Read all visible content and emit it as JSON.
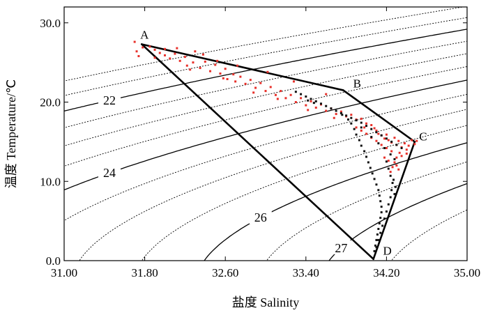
{
  "chart_data": {
    "type": "scatter",
    "title": "",
    "xlabel": "盐度 Salinity",
    "ylabel": "温度 Temperature/℃",
    "xlim": [
      31.0,
      35.0
    ],
    "ylim": [
      0.0,
      32.0
    ],
    "x_ticks": [
      31.0,
      31.8,
      32.6,
      33.4,
      34.2,
      35.0
    ],
    "x_tick_labels": [
      "31.00",
      "31.80",
      "32.60",
      "33.40",
      "34.20",
      "35.00"
    ],
    "y_ticks": [
      0.0,
      10.0,
      20.0,
      30.0
    ],
    "y_tick_labels": [
      "0.0",
      "10.0",
      "20.0",
      "30.0"
    ],
    "grid": false,
    "end_members": [
      {
        "name": "A",
        "salinity": 31.77,
        "temperature": 27.3
      },
      {
        "name": "B",
        "salinity": 33.77,
        "temperature": 21.5
      },
      {
        "name": "C",
        "salinity": 34.48,
        "temperature": 15.0
      },
      {
        "name": "D",
        "salinity": 34.07,
        "temperature": 0.2
      }
    ],
    "mixing_lines": [
      [
        "A",
        "B"
      ],
      [
        "B",
        "C"
      ],
      [
        "C",
        "D"
      ],
      [
        "D",
        "A"
      ]
    ],
    "density_contours": [
      {
        "sigma_t": 21,
        "label": ""
      },
      {
        "sigma_t": 21.5,
        "label": ""
      },
      {
        "sigma_t": 22,
        "label": "22"
      },
      {
        "sigma_t": 22.5,
        "label": ""
      },
      {
        "sigma_t": 23,
        "label": ""
      },
      {
        "sigma_t": 23.5,
        "label": ""
      },
      {
        "sigma_t": 24,
        "label": "24"
      },
      {
        "sigma_t": 24.5,
        "label": ""
      },
      {
        "sigma_t": 25,
        "label": ""
      },
      {
        "sigma_t": 25.5,
        "label": ""
      },
      {
        "sigma_t": 26,
        "label": "26"
      },
      {
        "sigma_t": 26.5,
        "label": ""
      },
      {
        "sigma_t": 27,
        "label": "27"
      },
      {
        "sigma_t": 27.5,
        "label": ""
      }
    ],
    "series": [
      {
        "name": "red observations",
        "color": "#e8302a",
        "points": [
          [
            31.7,
            27.6
          ],
          [
            31.72,
            26.4
          ],
          [
            31.74,
            25.8
          ],
          [
            31.78,
            26.9
          ],
          [
            31.85,
            27.0
          ],
          [
            31.9,
            26.6
          ],
          [
            31.95,
            26.2
          ],
          [
            32.0,
            26.7
          ],
          [
            32.05,
            25.5
          ],
          [
            32.1,
            26.1
          ],
          [
            32.15,
            25.2
          ],
          [
            32.2,
            25.7
          ],
          [
            32.22,
            24.6
          ],
          [
            32.28,
            25.0
          ],
          [
            32.3,
            26.4
          ],
          [
            32.35,
            24.3
          ],
          [
            32.4,
            25.1
          ],
          [
            32.45,
            23.9
          ],
          [
            32.5,
            24.7
          ],
          [
            32.55,
            23.6
          ],
          [
            32.6,
            24.2
          ],
          [
            32.62,
            22.9
          ],
          [
            32.68,
            23.5
          ],
          [
            32.7,
            22.6
          ],
          [
            32.75,
            23.2
          ],
          [
            32.8,
            22.3
          ],
          [
            32.85,
            22.8
          ],
          [
            32.9,
            21.8
          ],
          [
            32.95,
            22.4
          ],
          [
            33.0,
            21.4
          ],
          [
            33.05,
            21.9
          ],
          [
            33.1,
            20.9
          ],
          [
            33.15,
            21.4
          ],
          [
            33.2,
            20.5
          ],
          [
            33.25,
            20.9
          ],
          [
            33.3,
            20.0
          ],
          [
            33.35,
            20.5
          ],
          [
            33.4,
            19.6
          ],
          [
            33.45,
            20.1
          ],
          [
            33.5,
            19.3
          ],
          [
            33.55,
            19.7
          ],
          [
            33.6,
            18.9
          ],
          [
            33.65,
            19.2
          ],
          [
            33.7,
            18.5
          ],
          [
            33.75,
            18.8
          ],
          [
            33.8,
            18.2
          ],
          [
            33.85,
            18.4
          ],
          [
            33.9,
            17.8
          ],
          [
            33.95,
            17.9
          ],
          [
            34.0,
            17.3
          ],
          [
            34.05,
            17.1
          ],
          [
            34.08,
            16.7
          ],
          [
            34.1,
            16.4
          ],
          [
            34.12,
            16.0
          ],
          [
            34.15,
            15.8
          ],
          [
            34.18,
            15.4
          ],
          [
            34.2,
            15.9
          ],
          [
            34.22,
            15.2
          ],
          [
            34.25,
            14.9
          ],
          [
            34.28,
            15.5
          ],
          [
            34.3,
            14.6
          ],
          [
            34.32,
            15.1
          ],
          [
            34.35,
            14.3
          ],
          [
            34.38,
            14.8
          ],
          [
            34.4,
            14.0
          ],
          [
            34.42,
            14.5
          ],
          [
            34.45,
            15.2
          ],
          [
            34.48,
            14.7
          ],
          [
            34.5,
            15.1
          ],
          [
            34.33,
            13.6
          ],
          [
            34.3,
            13.0
          ],
          [
            34.28,
            12.4
          ],
          [
            34.26,
            11.8
          ],
          [
            34.24,
            11.2
          ],
          [
            34.35,
            13.2
          ],
          [
            34.4,
            13.5
          ],
          [
            34.25,
            13.8
          ],
          [
            34.2,
            14.2
          ],
          [
            34.15,
            14.6
          ],
          [
            34.1,
            15.1
          ],
          [
            34.05,
            15.5
          ],
          [
            34.0,
            16.0
          ],
          [
            33.95,
            16.4
          ],
          [
            33.9,
            16.8
          ],
          [
            34.3,
            12.0
          ],
          [
            34.32,
            11.5
          ],
          [
            34.22,
            12.6
          ],
          [
            34.18,
            13.0
          ],
          [
            32.0,
            25.9
          ],
          [
            32.25,
            24.1
          ],
          [
            32.58,
            23.0
          ],
          [
            32.88,
            21.2
          ],
          [
            33.12,
            20.4
          ],
          [
            33.42,
            19.0
          ],
          [
            33.68,
            18.0
          ],
          [
            33.98,
            16.8
          ],
          [
            31.9,
            25.6
          ],
          [
            32.12,
            26.8
          ],
          [
            32.38,
            26.0
          ],
          [
            32.52,
            25.2
          ],
          [
            32.72,
            24.6
          ],
          [
            33.02,
            23.8
          ],
          [
            33.28,
            22.6
          ],
          [
            33.6,
            21.0
          ]
        ]
      },
      {
        "name": "black observations",
        "color": "#111111",
        "points": [
          [
            33.3,
            21.3
          ],
          [
            33.35,
            21.0
          ],
          [
            33.4,
            20.7
          ],
          [
            33.45,
            20.4
          ],
          [
            33.5,
            20.1
          ],
          [
            33.55,
            19.8
          ],
          [
            33.42,
            20.2
          ],
          [
            33.48,
            19.9
          ],
          [
            33.6,
            19.5
          ],
          [
            33.65,
            19.2
          ],
          [
            33.7,
            18.9
          ],
          [
            33.75,
            18.6
          ],
          [
            33.8,
            18.3
          ],
          [
            33.85,
            18.0
          ],
          [
            33.9,
            17.7
          ],
          [
            33.95,
            17.4
          ],
          [
            34.0,
            17.0
          ],
          [
            34.05,
            16.6
          ],
          [
            34.1,
            16.2
          ],
          [
            34.15,
            15.8
          ],
          [
            34.2,
            15.4
          ],
          [
            34.25,
            15.0
          ],
          [
            34.3,
            14.6
          ],
          [
            34.35,
            14.2
          ],
          [
            33.85,
            17.3
          ],
          [
            33.88,
            16.6
          ],
          [
            33.9,
            15.9
          ],
          [
            33.93,
            15.2
          ],
          [
            33.95,
            14.5
          ],
          [
            33.98,
            13.8
          ],
          [
            34.0,
            13.1
          ],
          [
            34.02,
            12.4
          ],
          [
            34.04,
            11.7
          ],
          [
            34.06,
            11.0
          ],
          [
            34.08,
            10.3
          ],
          [
            34.1,
            9.6
          ],
          [
            34.12,
            8.9
          ],
          [
            34.13,
            8.2
          ],
          [
            34.14,
            7.5
          ],
          [
            34.15,
            6.8
          ],
          [
            34.15,
            6.1
          ],
          [
            34.14,
            5.4
          ],
          [
            34.13,
            4.7
          ],
          [
            34.12,
            4.0
          ],
          [
            34.11,
            3.3
          ],
          [
            34.1,
            2.6
          ],
          [
            34.09,
            1.9
          ],
          [
            34.08,
            1.2
          ],
          [
            34.2,
            12.5
          ],
          [
            34.22,
            11.6
          ],
          [
            34.24,
            10.7
          ],
          [
            34.26,
            9.8
          ],
          [
            34.25,
            8.9
          ],
          [
            34.24,
            8.0
          ],
          [
            34.22,
            7.1
          ],
          [
            34.2,
            6.2
          ],
          [
            34.18,
            5.3
          ],
          [
            34.16,
            4.4
          ],
          [
            34.14,
            3.5
          ],
          [
            34.12,
            2.6
          ],
          [
            34.1,
            1.7
          ],
          [
            34.27,
            10.2
          ],
          [
            34.29,
            9.3
          ],
          [
            34.28,
            8.4
          ],
          [
            33.95,
            16.8
          ],
          [
            34.05,
            15.6
          ],
          [
            34.12,
            14.8
          ],
          [
            34.18,
            14.2
          ],
          [
            34.24,
            13.4
          ],
          [
            34.28,
            12.8
          ],
          [
            33.82,
            17.8
          ],
          [
            33.76,
            18.4
          ]
        ]
      }
    ]
  }
}
